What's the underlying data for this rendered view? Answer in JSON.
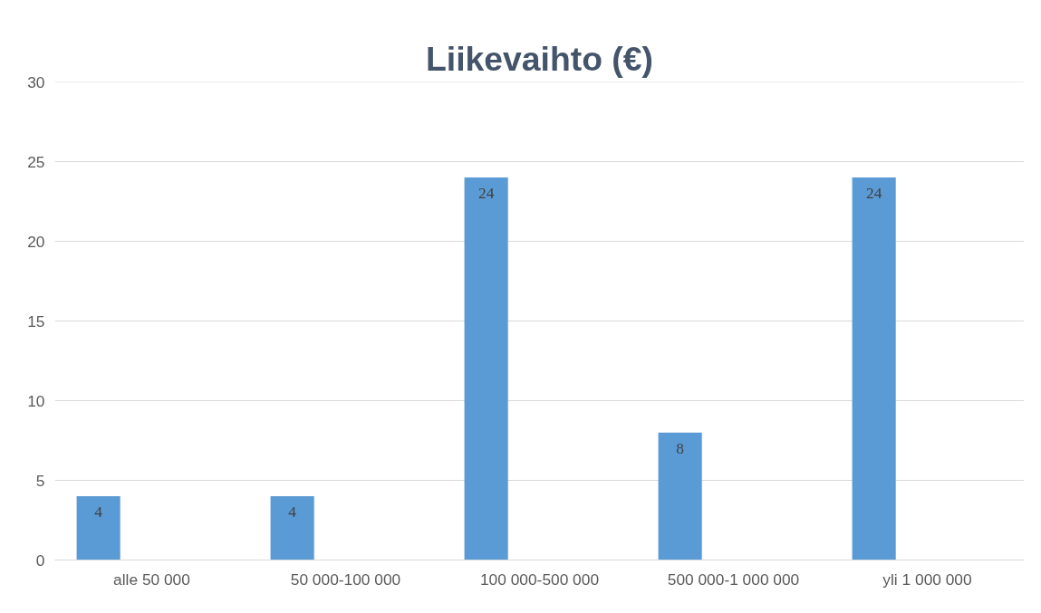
{
  "chart_data": {
    "type": "bar",
    "title": "Liikevaihto (€)",
    "categories": [
      "alle 50 000",
      "50 000-100 000",
      "100 000-500 000",
      "500 000-1 000 000",
      "yli 1 000 000"
    ],
    "values": [
      4,
      4,
      24,
      8,
      24
    ],
    "color": "#5b9bd5",
    "ylim": [
      0,
      30
    ],
    "yticks": [
      0,
      5,
      10,
      15,
      20,
      25,
      30
    ],
    "grid": "y",
    "data_labels": true
  }
}
